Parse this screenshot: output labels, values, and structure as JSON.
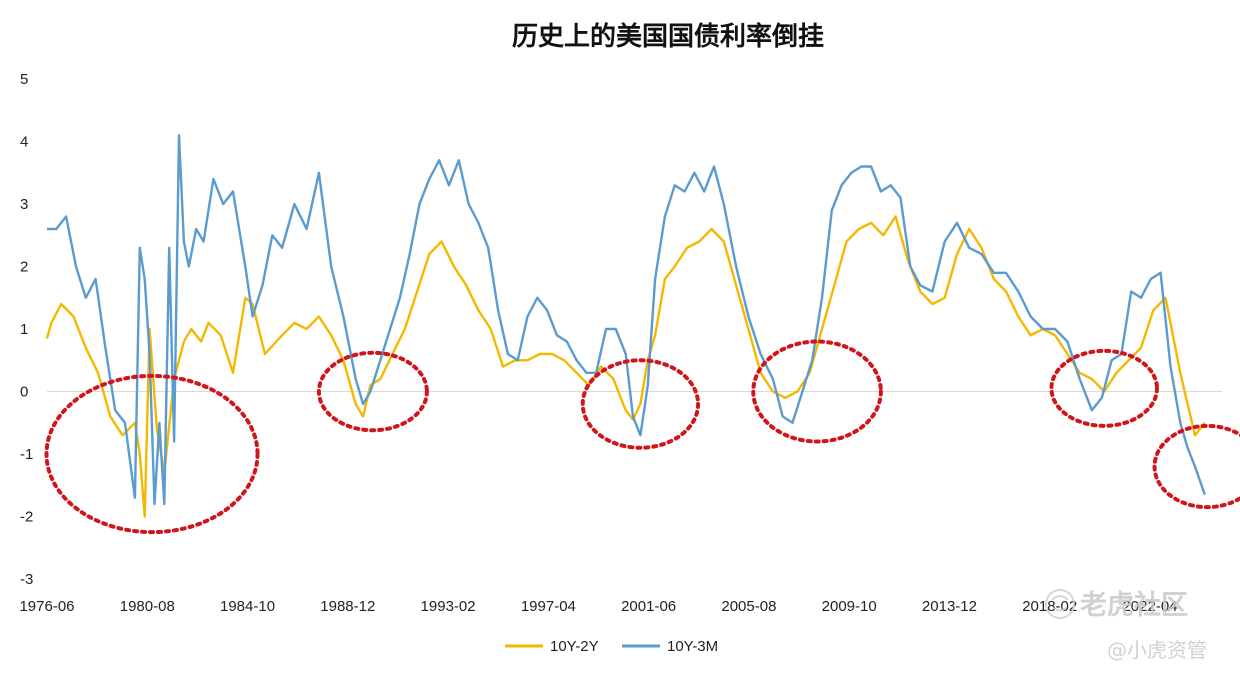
{
  "chart_data": {
    "type": "line",
    "title": "历史上的美国国债利率倒挂",
    "xlabel": "",
    "ylabel": "",
    "ylim": [
      -3,
      5
    ],
    "yticks": [
      5,
      4,
      3,
      2,
      1,
      0,
      -1,
      -2,
      -3
    ],
    "xticks": [
      "1976-06",
      "1980-08",
      "1984-10",
      "1988-12",
      "1993-02",
      "1997-04",
      "2001-06",
      "2005-08",
      "2009-10",
      "2013-12",
      "2018-02",
      "2022-04"
    ],
    "xlim": [
      1976.42,
      2024.3
    ],
    "series": [
      {
        "name": "10Y-2Y",
        "color": "#f5b800",
        "x": [
          1976.42,
          1976.6,
          1977.0,
          1977.5,
          1978.0,
          1978.5,
          1979.0,
          1979.5,
          1980.0,
          1980.2,
          1980.4,
          1980.6,
          1980.9,
          1981.2,
          1981.6,
          1982.0,
          1982.3,
          1982.7,
          1983.0,
          1983.5,
          1984.0,
          1984.5,
          1984.8,
          1985.3,
          1986.0,
          1986.5,
          1987.0,
          1987.5,
          1988.0,
          1988.5,
          1989.0,
          1989.3,
          1989.6,
          1990.0,
          1990.5,
          1991.0,
          1991.5,
          1992.0,
          1992.5,
          1993.0,
          1993.5,
          1994.0,
          1994.5,
          1995.0,
          1995.5,
          1996.0,
          1996.5,
          1997.0,
          1997.5,
          1998.0,
          1998.5,
          1999.0,
          1999.5,
          2000.0,
          2000.3,
          2000.6,
          2000.9,
          2001.2,
          2001.6,
          2002.0,
          2002.5,
          2003.0,
          2003.5,
          2004.0,
          2004.5,
          2005.0,
          2005.5,
          2006.0,
          2006.5,
          2007.0,
          2007.5,
          2008.0,
          2008.5,
          2009.0,
          2009.5,
          2010.0,
          2010.5,
          2011.0,
          2011.5,
          2012.0,
          2012.5,
          2013.0,
          2013.5,
          2014.0,
          2014.5,
          2015.0,
          2015.5,
          2016.0,
          2016.5,
          2017.0,
          2017.5,
          2018.0,
          2018.5,
          2019.0,
          2019.5,
          2020.0,
          2020.5,
          2021.0,
          2021.5,
          2022.0,
          2022.3,
          2022.6,
          2022.9,
          2023.2,
          2023.6
        ],
        "values": [
          0.85,
          1.1,
          1.4,
          1.2,
          0.7,
          0.3,
          -0.4,
          -0.7,
          -0.5,
          -1.0,
          -2.0,
          1.0,
          -0.6,
          -1.3,
          0.2,
          0.8,
          1.0,
          0.8,
          1.1,
          0.9,
          0.3,
          1.5,
          1.4,
          0.6,
          0.9,
          1.1,
          1.0,
          1.2,
          0.9,
          0.5,
          -0.2,
          -0.4,
          0.1,
          0.2,
          0.6,
          1.0,
          1.6,
          2.2,
          2.4,
          2.0,
          1.7,
          1.3,
          1.0,
          0.4,
          0.5,
          0.5,
          0.6,
          0.6,
          0.5,
          0.3,
          0.1,
          0.4,
          0.2,
          -0.3,
          -0.45,
          -0.2,
          0.5,
          0.9,
          1.8,
          2.0,
          2.3,
          2.4,
          2.6,
          2.4,
          1.7,
          1.0,
          0.3,
          0.0,
          -0.1,
          0.0,
          0.3,
          1.0,
          1.7,
          2.4,
          2.6,
          2.7,
          2.5,
          2.8,
          2.1,
          1.6,
          1.4,
          1.5,
          2.2,
          2.6,
          2.3,
          1.8,
          1.6,
          1.2,
          0.9,
          1.0,
          0.9,
          0.6,
          0.3,
          0.2,
          0.0,
          0.3,
          0.5,
          0.7,
          1.3,
          1.5,
          0.9,
          0.3,
          -0.2,
          -0.7,
          -0.5
        ]
      },
      {
        "name": "10Y-3M",
        "color": "#5a9bd0",
        "x": [
          1976.42,
          1976.8,
          1977.2,
          1977.6,
          1978.0,
          1978.4,
          1978.8,
          1979.2,
          1979.6,
          1980.0,
          1980.2,
          1980.4,
          1980.6,
          1980.8,
          1981.0,
          1981.2,
          1981.4,
          1981.6,
          1981.8,
          1982.0,
          1982.2,
          1982.5,
          1982.8,
          1983.2,
          1983.6,
          1984.0,
          1984.5,
          1984.8,
          1985.2,
          1985.6,
          1986.0,
          1986.5,
          1987.0,
          1987.5,
          1988.0,
          1988.5,
          1989.0,
          1989.3,
          1989.6,
          1990.0,
          1990.4,
          1990.8,
          1991.2,
          1991.6,
          1992.0,
          1992.4,
          1992.8,
          1993.2,
          1993.6,
          1994.0,
          1994.4,
          1994.8,
          1995.2,
          1995.6,
          1996.0,
          1996.4,
          1996.8,
          1997.2,
          1997.6,
          1998.0,
          1998.4,
          1998.8,
          1999.2,
          1999.6,
          2000.0,
          2000.3,
          2000.6,
          2000.9,
          2001.2,
          2001.6,
          2002.0,
          2002.4,
          2002.8,
          2003.2,
          2003.6,
          2004.0,
          2004.5,
          2005.0,
          2005.5,
          2006.0,
          2006.4,
          2006.8,
          2007.2,
          2007.6,
          2008.0,
          2008.4,
          2008.8,
          2009.2,
          2009.6,
          2010.0,
          2010.4,
          2010.8,
          2011.2,
          2011.6,
          2012.0,
          2012.5,
          2013.0,
          2013.5,
          2014.0,
          2014.5,
          2015.0,
          2015.5,
          2016.0,
          2016.5,
          2017.0,
          2017.5,
          2018.0,
          2018.5,
          2019.0,
          2019.4,
          2019.8,
          2020.2,
          2020.6,
          2021.0,
          2021.4,
          2021.8,
          2022.2,
          2022.6,
          2022.9,
          2023.2,
          2023.6
        ],
        "values": [
          2.6,
          2.6,
          2.8,
          2.0,
          1.5,
          1.8,
          0.7,
          -0.3,
          -0.5,
          -1.7,
          2.3,
          1.8,
          0.6,
          -1.8,
          -0.5,
          -1.8,
          2.3,
          -0.8,
          4.1,
          2.4,
          2.0,
          2.6,
          2.4,
          3.4,
          3.0,
          3.2,
          2.0,
          1.2,
          1.7,
          2.5,
          2.3,
          3.0,
          2.6,
          3.5,
          2.0,
          1.2,
          0.2,
          -0.2,
          0.0,
          0.5,
          1.0,
          1.5,
          2.2,
          3.0,
          3.4,
          3.7,
          3.3,
          3.7,
          3.0,
          2.7,
          2.3,
          1.3,
          0.6,
          0.5,
          1.2,
          1.5,
          1.3,
          0.9,
          0.8,
          0.5,
          0.3,
          0.3,
          1.0,
          1.0,
          0.6,
          -0.4,
          -0.7,
          0.1,
          1.8,
          2.8,
          3.3,
          3.2,
          3.5,
          3.2,
          3.6,
          3.0,
          2.0,
          1.2,
          0.6,
          0.2,
          -0.4,
          -0.5,
          0.0,
          0.5,
          1.5,
          2.9,
          3.3,
          3.5,
          3.6,
          3.6,
          3.2,
          3.3,
          3.1,
          2.0,
          1.7,
          1.6,
          2.4,
          2.7,
          2.3,
          2.2,
          1.9,
          1.9,
          1.6,
          1.2,
          1.0,
          1.0,
          0.8,
          0.2,
          -0.3,
          -0.1,
          0.5,
          0.6,
          1.6,
          1.5,
          1.8,
          1.9,
          0.4,
          -0.5,
          -0.9,
          -1.2,
          -1.65
        ]
      }
    ],
    "legend": {
      "position": "bottom-center",
      "entries": [
        "10Y-2Y",
        "10Y-3M"
      ]
    },
    "annotations": [
      {
        "type": "dotted-ellipse",
        "color": "#d0151b",
        "center": [
          1980.7,
          -1.0
        ],
        "halfwidth_years": 4.3,
        "half_height": 1.25
      },
      {
        "type": "dotted-ellipse",
        "color": "#d0151b",
        "center": [
          1989.7,
          0.0
        ],
        "halfwidth_years": 2.2,
        "half_height": 0.62
      },
      {
        "type": "dotted-ellipse",
        "color": "#d0151b",
        "center": [
          2000.6,
          -0.2
        ],
        "halfwidth_years": 2.35,
        "half_height": 0.7
      },
      {
        "type": "dotted-ellipse",
        "color": "#d0151b",
        "center": [
          2007.8,
          0.0
        ],
        "halfwidth_years": 2.6,
        "half_height": 0.8
      },
      {
        "type": "dotted-ellipse",
        "color": "#d0151b",
        "center": [
          2019.5,
          0.05
        ],
        "halfwidth_years": 2.15,
        "half_height": 0.6
      },
      {
        "type": "dotted-ellipse",
        "color": "#d0151b",
        "center": [
          2023.7,
          -1.2
        ],
        "halfwidth_years": 2.15,
        "half_height": 0.65
      }
    ]
  },
  "watermark": {
    "brand": "老虎社区",
    "handle": "@小虎资管",
    "icon": "tiger-logo-icon"
  }
}
